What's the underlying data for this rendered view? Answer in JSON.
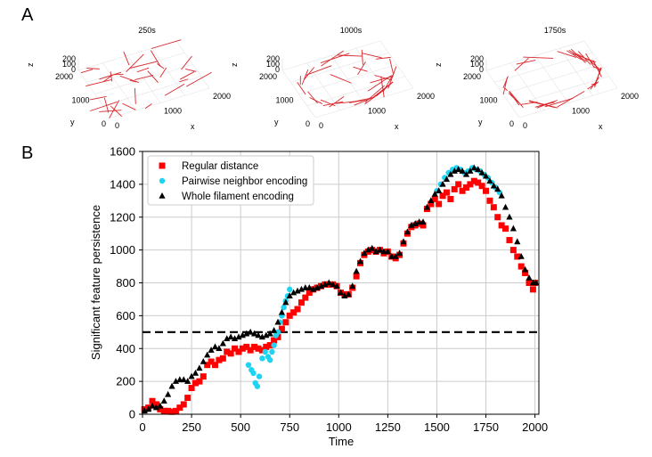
{
  "panel_a": {
    "letter": "A",
    "plots": [
      {
        "title": "250s",
        "x_ticks": [
          "0",
          "1000",
          "2000"
        ],
        "y_ticks": [
          "0",
          "1000",
          "2000"
        ],
        "z_ticks": [
          "0",
          "100",
          "200"
        ],
        "x_label": "x",
        "y_label": "y",
        "z_label": "z",
        "pattern": "random"
      },
      {
        "title": "1000s",
        "x_ticks": [
          "0",
          "1000",
          "2000"
        ],
        "y_ticks": [
          "0",
          "1000",
          "2000"
        ],
        "z_ticks": [
          "0",
          "100",
          "200"
        ],
        "x_label": "x",
        "y_label": "y",
        "z_label": "z",
        "pattern": "partial-ring"
      },
      {
        "title": "1750s",
        "x_ticks": [
          "0",
          "1000",
          "2000"
        ],
        "y_ticks": [
          "0",
          "1000",
          "2000"
        ],
        "z_ticks": [
          "0",
          "100",
          "200"
        ],
        "x_label": "x",
        "y_label": "y",
        "z_label": "z",
        "pattern": "ring"
      }
    ]
  },
  "panel_b": {
    "letter": "B"
  },
  "colors": {
    "red": "#ff0000",
    "cyan": "#1fd3f2",
    "black": "#000000",
    "filament": "#d9262b",
    "grid": "#cccccc"
  },
  "chart_data": {
    "type": "scatter",
    "xlabel": "Time",
    "ylabel": "Significant feature persistence",
    "xlim": [
      0,
      2020
    ],
    "ylim": [
      0,
      1600
    ],
    "x_ticks": [
      0,
      250,
      500,
      750,
      1000,
      1250,
      1500,
      1750,
      2000
    ],
    "y_ticks": [
      0,
      200,
      400,
      600,
      800,
      1000,
      1200,
      1400,
      1600
    ],
    "grid": true,
    "legend_position": "top-left",
    "threshold": {
      "y": 500,
      "style": "dashed"
    },
    "series": [
      {
        "name": "Regular distance",
        "marker": "square",
        "color": "#ff0000",
        "points": [
          [
            10,
            30
          ],
          [
            30,
            40
          ],
          [
            50,
            80
          ],
          [
            70,
            60
          ],
          [
            90,
            30
          ],
          [
            110,
            20
          ],
          [
            130,
            20
          ],
          [
            150,
            15
          ],
          [
            170,
            20
          ],
          [
            190,
            40
          ],
          [
            210,
            60
          ],
          [
            230,
            100
          ],
          [
            250,
            160
          ],
          [
            270,
            190
          ],
          [
            290,
            200
          ],
          [
            310,
            230
          ],
          [
            330,
            300
          ],
          [
            350,
            320
          ],
          [
            370,
            300
          ],
          [
            390,
            330
          ],
          [
            410,
            340
          ],
          [
            430,
            380
          ],
          [
            450,
            370
          ],
          [
            470,
            400
          ],
          [
            490,
            380
          ],
          [
            510,
            400
          ],
          [
            530,
            410
          ],
          [
            550,
            390
          ],
          [
            570,
            410
          ],
          [
            590,
            400
          ],
          [
            610,
            390
          ],
          [
            630,
            410
          ],
          [
            650,
            420
          ],
          [
            670,
            450
          ],
          [
            690,
            470
          ],
          [
            710,
            520
          ],
          [
            730,
            560
          ],
          [
            750,
            600
          ],
          [
            770,
            620
          ],
          [
            790,
            640
          ],
          [
            810,
            680
          ],
          [
            830,
            710
          ],
          [
            850,
            740
          ],
          [
            870,
            760
          ],
          [
            890,
            770
          ],
          [
            910,
            780
          ],
          [
            930,
            790
          ],
          [
            950,
            790
          ],
          [
            970,
            790
          ],
          [
            990,
            780
          ],
          [
            1010,
            740
          ],
          [
            1030,
            730
          ],
          [
            1050,
            730
          ],
          [
            1070,
            770
          ],
          [
            1090,
            840
          ],
          [
            1110,
            920
          ],
          [
            1130,
            970
          ],
          [
            1150,
            990
          ],
          [
            1170,
            1000
          ],
          [
            1190,
            990
          ],
          [
            1210,
            1000
          ],
          [
            1230,
            980
          ],
          [
            1250,
            990
          ],
          [
            1270,
            960
          ],
          [
            1290,
            950
          ],
          [
            1310,
            970
          ],
          [
            1330,
            1040
          ],
          [
            1350,
            1100
          ],
          [
            1370,
            1140
          ],
          [
            1390,
            1150
          ],
          [
            1410,
            1160
          ],
          [
            1430,
            1150
          ],
          [
            1450,
            1250
          ],
          [
            1470,
            1280
          ],
          [
            1490,
            1310
          ],
          [
            1510,
            1280
          ],
          [
            1530,
            1330
          ],
          [
            1550,
            1350
          ],
          [
            1570,
            1310
          ],
          [
            1590,
            1370
          ],
          [
            1610,
            1400
          ],
          [
            1630,
            1360
          ],
          [
            1650,
            1380
          ],
          [
            1670,
            1400
          ],
          [
            1690,
            1420
          ],
          [
            1710,
            1410
          ],
          [
            1730,
            1390
          ],
          [
            1750,
            1360
          ],
          [
            1770,
            1300
          ],
          [
            1790,
            1260
          ],
          [
            1810,
            1200
          ],
          [
            1830,
            1150
          ],
          [
            1850,
            1130
          ],
          [
            1870,
            1060
          ],
          [
            1890,
            1000
          ],
          [
            1910,
            960
          ],
          [
            1930,
            900
          ],
          [
            1950,
            860
          ],
          [
            1970,
            800
          ],
          [
            1990,
            760
          ],
          [
            2000,
            800
          ]
        ]
      },
      {
        "name": "Pairwise neighbor encoding",
        "marker": "circle",
        "color": "#1fd3f2",
        "points": [
          [
            540,
            300
          ],
          [
            555,
            270
          ],
          [
            565,
            250
          ],
          [
            575,
            190
          ],
          [
            585,
            170
          ],
          [
            595,
            230
          ],
          [
            610,
            340
          ],
          [
            625,
            380
          ],
          [
            640,
            350
          ],
          [
            650,
            330
          ],
          [
            660,
            380
          ],
          [
            670,
            420
          ],
          [
            680,
            480
          ],
          [
            690,
            500
          ],
          [
            700,
            560
          ],
          [
            710,
            600
          ],
          [
            720,
            650
          ],
          [
            730,
            690
          ],
          [
            740,
            720
          ],
          [
            750,
            760
          ],
          [
            1500,
            1360
          ],
          [
            1520,
            1400
          ],
          [
            1540,
            1440
          ],
          [
            1560,
            1470
          ],
          [
            1580,
            1490
          ],
          [
            1600,
            1500
          ],
          [
            1620,
            1490
          ],
          [
            1640,
            1470
          ],
          [
            1660,
            1480
          ],
          [
            1680,
            1500
          ],
          [
            1700,
            1490
          ],
          [
            1720,
            1480
          ],
          [
            1740,
            1460
          ],
          [
            1760,
            1440
          ],
          [
            1780,
            1410
          ],
          [
            1800,
            1380
          ],
          [
            1820,
            1350
          ]
        ]
      },
      {
        "name": "Whole filament encoding",
        "marker": "triangle",
        "color": "#000000",
        "points": [
          [
            10,
            20
          ],
          [
            30,
            30
          ],
          [
            50,
            50
          ],
          [
            70,
            40
          ],
          [
            90,
            50
          ],
          [
            110,
            80
          ],
          [
            130,
            120
          ],
          [
            150,
            170
          ],
          [
            170,
            200
          ],
          [
            190,
            210
          ],
          [
            210,
            210
          ],
          [
            230,
            200
          ],
          [
            250,
            230
          ],
          [
            270,
            250
          ],
          [
            290,
            280
          ],
          [
            310,
            320
          ],
          [
            330,
            360
          ],
          [
            350,
            390
          ],
          [
            370,
            410
          ],
          [
            390,
            400
          ],
          [
            410,
            430
          ],
          [
            430,
            460
          ],
          [
            450,
            470
          ],
          [
            470,
            460
          ],
          [
            490,
            470
          ],
          [
            510,
            480
          ],
          [
            530,
            490
          ],
          [
            550,
            500
          ],
          [
            570,
            490
          ],
          [
            590,
            480
          ],
          [
            610,
            470
          ],
          [
            630,
            480
          ],
          [
            650,
            490
          ],
          [
            670,
            510
          ],
          [
            690,
            560
          ],
          [
            710,
            620
          ],
          [
            730,
            680
          ],
          [
            750,
            720
          ],
          [
            770,
            740
          ],
          [
            790,
            750
          ],
          [
            810,
            760
          ],
          [
            830,
            770
          ],
          [
            850,
            770
          ],
          [
            870,
            760
          ],
          [
            890,
            770
          ],
          [
            910,
            780
          ],
          [
            930,
            790
          ],
          [
            950,
            800
          ],
          [
            970,
            790
          ],
          [
            990,
            780
          ],
          [
            1010,
            740
          ],
          [
            1030,
            720
          ],
          [
            1050,
            730
          ],
          [
            1070,
            780
          ],
          [
            1090,
            870
          ],
          [
            1110,
            930
          ],
          [
            1130,
            980
          ],
          [
            1150,
            1000
          ],
          [
            1170,
            1010
          ],
          [
            1190,
            990
          ],
          [
            1210,
            1000
          ],
          [
            1230,
            990
          ],
          [
            1250,
            990
          ],
          [
            1270,
            960
          ],
          [
            1290,
            960
          ],
          [
            1310,
            980
          ],
          [
            1330,
            1050
          ],
          [
            1350,
            1110
          ],
          [
            1370,
            1150
          ],
          [
            1390,
            1160
          ],
          [
            1410,
            1170
          ],
          [
            1430,
            1170
          ],
          [
            1450,
            1260
          ],
          [
            1470,
            1300
          ],
          [
            1490,
            1340
          ],
          [
            1510,
            1360
          ],
          [
            1530,
            1400
          ],
          [
            1550,
            1430
          ],
          [
            1570,
            1460
          ],
          [
            1590,
            1480
          ],
          [
            1610,
            1490
          ],
          [
            1630,
            1480
          ],
          [
            1650,
            1460
          ],
          [
            1670,
            1480
          ],
          [
            1690,
            1500
          ],
          [
            1710,
            1490
          ],
          [
            1730,
            1470
          ],
          [
            1750,
            1450
          ],
          [
            1770,
            1420
          ],
          [
            1790,
            1390
          ],
          [
            1810,
            1370
          ],
          [
            1830,
            1330
          ],
          [
            1850,
            1260
          ],
          [
            1870,
            1200
          ],
          [
            1890,
            1130
          ],
          [
            1910,
            1050
          ],
          [
            1930,
            960
          ],
          [
            1950,
            880
          ],
          [
            1970,
            830
          ],
          [
            1990,
            800
          ],
          [
            2005,
            800
          ]
        ]
      }
    ]
  }
}
